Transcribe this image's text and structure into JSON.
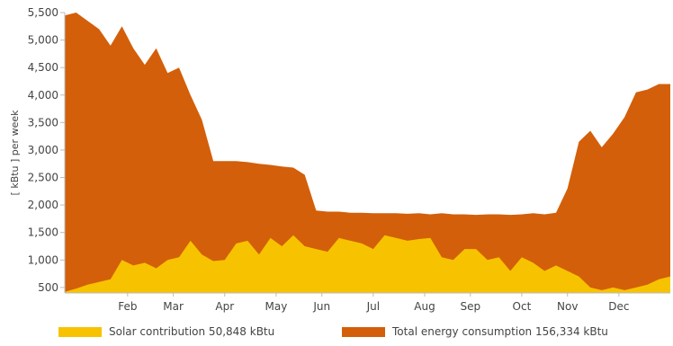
{
  "chart_data": {
    "type": "area",
    "ylabel": "[ kBtu ] per week",
    "ylim": [
      400,
      5500
    ],
    "yticks": [
      500,
      1000,
      1500,
      2000,
      2500,
      3000,
      3500,
      4000,
      4500,
      5000,
      5500
    ],
    "ytick_labels": [
      "500",
      "1,000",
      "1,500",
      "2,000",
      "2,500",
      "3,000",
      "3,500",
      "4,000",
      "4,500",
      "5,000",
      "5,500"
    ],
    "xlim": [
      0,
      53
    ],
    "month_labels": [
      {
        "label": "Feb",
        "week": 5.5
      },
      {
        "label": "Mar",
        "week": 9.5
      },
      {
        "label": "Apr",
        "week": 14
      },
      {
        "label": "May",
        "week": 18.5
      },
      {
        "label": "Jun",
        "week": 22.5
      },
      {
        "label": "Jul",
        "week": 27
      },
      {
        "label": "Aug",
        "week": 31.5
      },
      {
        "label": "Sep",
        "week": 35.5
      },
      {
        "label": "Oct",
        "week": 40
      },
      {
        "label": "Nov",
        "week": 44
      },
      {
        "label": "Dec",
        "week": 48.5
      }
    ],
    "grid": false,
    "legend_position": "bottom",
    "series": [
      {
        "name": "Total energy consumption 156,334 kBtu",
        "color": "#d35f0a",
        "x": [
          0,
          1,
          2,
          3,
          4,
          5,
          6,
          7,
          8,
          9,
          10,
          11,
          12,
          13,
          14,
          15,
          16,
          17,
          18,
          19,
          20,
          21,
          22,
          23,
          24,
          25,
          26,
          27,
          28,
          29,
          30,
          31,
          32,
          33,
          34,
          35,
          36,
          37,
          38,
          39,
          40,
          41,
          42,
          43,
          44,
          45,
          46,
          47,
          48,
          49,
          50,
          51,
          52,
          53
        ],
        "values": [
          5450,
          5500,
          5350,
          5200,
          4900,
          5250,
          4850,
          4550,
          4850,
          4400,
          4500,
          4000,
          3550,
          2800,
          2800,
          2800,
          2780,
          2750,
          2730,
          2700,
          2680,
          2550,
          1900,
          1880,
          1880,
          1860,
          1860,
          1850,
          1850,
          1850,
          1840,
          1850,
          1830,
          1850,
          1830,
          1830,
          1820,
          1830,
          1830,
          1820,
          1830,
          1850,
          1830,
          1860,
          2300,
          3150,
          3350,
          3050,
          3300,
          3600,
          4050,
          4100,
          4200,
          4200
        ]
      },
      {
        "name": "Solar contribution 50,848 kBtu",
        "color": "#f7c300",
        "x": [
          0,
          1,
          2,
          3,
          4,
          5,
          6,
          7,
          8,
          9,
          10,
          11,
          12,
          13,
          14,
          15,
          16,
          17,
          18,
          19,
          20,
          21,
          22,
          23,
          24,
          25,
          26,
          27,
          28,
          29,
          30,
          31,
          32,
          33,
          34,
          35,
          36,
          37,
          38,
          39,
          40,
          41,
          42,
          43,
          44,
          45,
          46,
          47,
          48,
          49,
          50,
          51,
          52,
          53
        ],
        "values": [
          420,
          480,
          550,
          600,
          650,
          1000,
          900,
          950,
          850,
          1000,
          1050,
          1350,
          1100,
          980,
          1000,
          1300,
          1350,
          1100,
          1400,
          1250,
          1450,
          1250,
          1200,
          1150,
          1400,
          1350,
          1300,
          1200,
          1450,
          1400,
          1350,
          1380,
          1400,
          1050,
          1000,
          1200,
          1200,
          1000,
          1050,
          800,
          1050,
          950,
          800,
          900,
          800,
          700,
          500,
          450,
          500,
          450,
          500,
          550,
          650,
          700
        ]
      }
    ]
  }
}
